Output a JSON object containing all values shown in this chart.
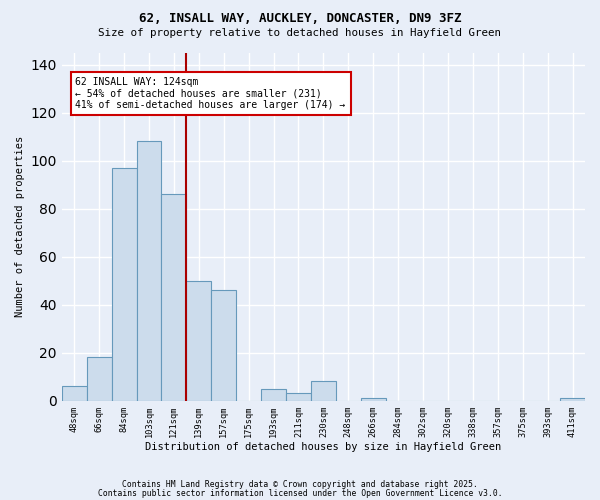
{
  "title1": "62, INSALL WAY, AUCKLEY, DONCASTER, DN9 3FZ",
  "title2": "Size of property relative to detached houses in Hayfield Green",
  "xlabel": "Distribution of detached houses by size in Hayfield Green",
  "ylabel": "Number of detached properties",
  "bar_labels": [
    "48sqm",
    "66sqm",
    "84sqm",
    "103sqm",
    "121sqm",
    "139sqm",
    "157sqm",
    "175sqm",
    "193sqm",
    "211sqm",
    "230sqm",
    "248sqm",
    "266sqm",
    "284sqm",
    "302sqm",
    "320sqm",
    "338sqm",
    "357sqm",
    "375sqm",
    "393sqm",
    "411sqm"
  ],
  "bar_values": [
    6,
    18,
    97,
    108,
    86,
    50,
    46,
    0,
    5,
    3,
    8,
    0,
    1,
    0,
    0,
    0,
    0,
    0,
    0,
    0,
    1
  ],
  "bar_color": "#ccdcec",
  "bar_edge_color": "#6699bb",
  "bg_color": "#e8eef8",
  "grid_color": "#ffffff",
  "vline_color": "#aa0000",
  "property_line_idx": 4.5,
  "annotation_text": "62 INSALL WAY: 124sqm\n← 54% of detached houses are smaller (231)\n41% of semi-detached houses are larger (174) →",
  "annot_box_color": "#ffffff",
  "annot_box_edge": "#cc0000",
  "ylim": [
    0,
    145
  ],
  "footer1": "Contains HM Land Registry data © Crown copyright and database right 2025.",
  "footer2": "Contains public sector information licensed under the Open Government Licence v3.0."
}
